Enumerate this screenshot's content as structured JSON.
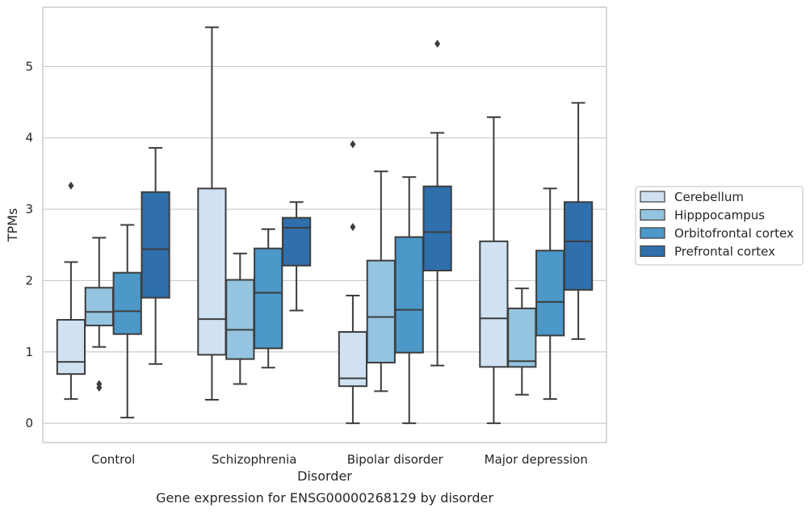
{
  "caption": "Gene expression for ENSG00000268129 by disorder",
  "chart_data": {
    "type": "box",
    "xlabel": "Disorder",
    "ylabel": "TPMs",
    "ylim": [
      -0.27,
      5.83
    ],
    "yticks": [
      0,
      1,
      2,
      3,
      4,
      5
    ],
    "grid": "horizontal",
    "legend_position": "right",
    "categories": [
      "Control",
      "Schizophrenia",
      "Bipolar disorder",
      "Major depression"
    ],
    "series": [
      {
        "name": "Cerebellum",
        "color": "#d0e1f2",
        "boxes": [
          {
            "whislo": 0.34,
            "q1": 0.69,
            "med": 0.86,
            "q3": 1.45,
            "whishi": 2.26,
            "fliers": [
              3.33
            ]
          },
          {
            "whislo": 0.33,
            "q1": 0.96,
            "med": 1.46,
            "q3": 3.29,
            "whishi": 5.55,
            "fliers": []
          },
          {
            "whislo": 0.0,
            "q1": 0.52,
            "med": 0.63,
            "q3": 1.28,
            "whishi": 1.79,
            "fliers": [
              2.75,
              3.91
            ]
          },
          {
            "whislo": 0.0,
            "q1": 0.79,
            "med": 1.47,
            "q3": 2.55,
            "whishi": 4.29,
            "fliers": []
          }
        ]
      },
      {
        "name": "Hipppocampus",
        "color": "#94c4df",
        "boxes": [
          {
            "whislo": 1.07,
            "q1": 1.37,
            "med": 1.56,
            "q3": 1.9,
            "whishi": 2.6,
            "fliers": [
              0.5,
              0.55
            ]
          },
          {
            "whislo": 0.55,
            "q1": 0.9,
            "med": 1.31,
            "q3": 2.01,
            "whishi": 2.38,
            "fliers": []
          },
          {
            "whislo": 0.45,
            "q1": 0.85,
            "med": 1.49,
            "q3": 2.28,
            "whishi": 3.53,
            "fliers": []
          },
          {
            "whislo": 0.4,
            "q1": 0.79,
            "med": 0.87,
            "q3": 1.61,
            "whishi": 1.89,
            "fliers": []
          }
        ]
      },
      {
        "name": "Orbitofrontal cortex",
        "color": "#4b98c9",
        "boxes": [
          {
            "whislo": 0.08,
            "q1": 1.25,
            "med": 1.57,
            "q3": 2.11,
            "whishi": 2.78,
            "fliers": []
          },
          {
            "whislo": 0.78,
            "q1": 1.05,
            "med": 1.83,
            "q3": 2.45,
            "whishi": 2.72,
            "fliers": []
          },
          {
            "whislo": 0.0,
            "q1": 0.99,
            "med": 1.59,
            "q3": 2.61,
            "whishi": 3.45,
            "fliers": []
          },
          {
            "whislo": 0.34,
            "q1": 1.23,
            "med": 1.7,
            "q3": 2.42,
            "whishi": 3.29,
            "fliers": []
          }
        ]
      },
      {
        "name": "Prefrontal cortex",
        "color": "#2f6fac",
        "boxes": [
          {
            "whislo": 0.83,
            "q1": 1.76,
            "med": 2.44,
            "q3": 3.24,
            "whishi": 3.86,
            "fliers": []
          },
          {
            "whislo": 1.58,
            "q1": 2.21,
            "med": 2.74,
            "q3": 2.88,
            "whishi": 3.1,
            "fliers": []
          },
          {
            "whislo": 0.81,
            "q1": 2.14,
            "med": 2.68,
            "q3": 3.32,
            "whishi": 4.07,
            "fliers": [
              5.32
            ]
          },
          {
            "whislo": 1.18,
            "q1": 1.87,
            "med": 2.55,
            "q3": 3.1,
            "whishi": 4.49,
            "fliers": []
          }
        ]
      }
    ]
  }
}
